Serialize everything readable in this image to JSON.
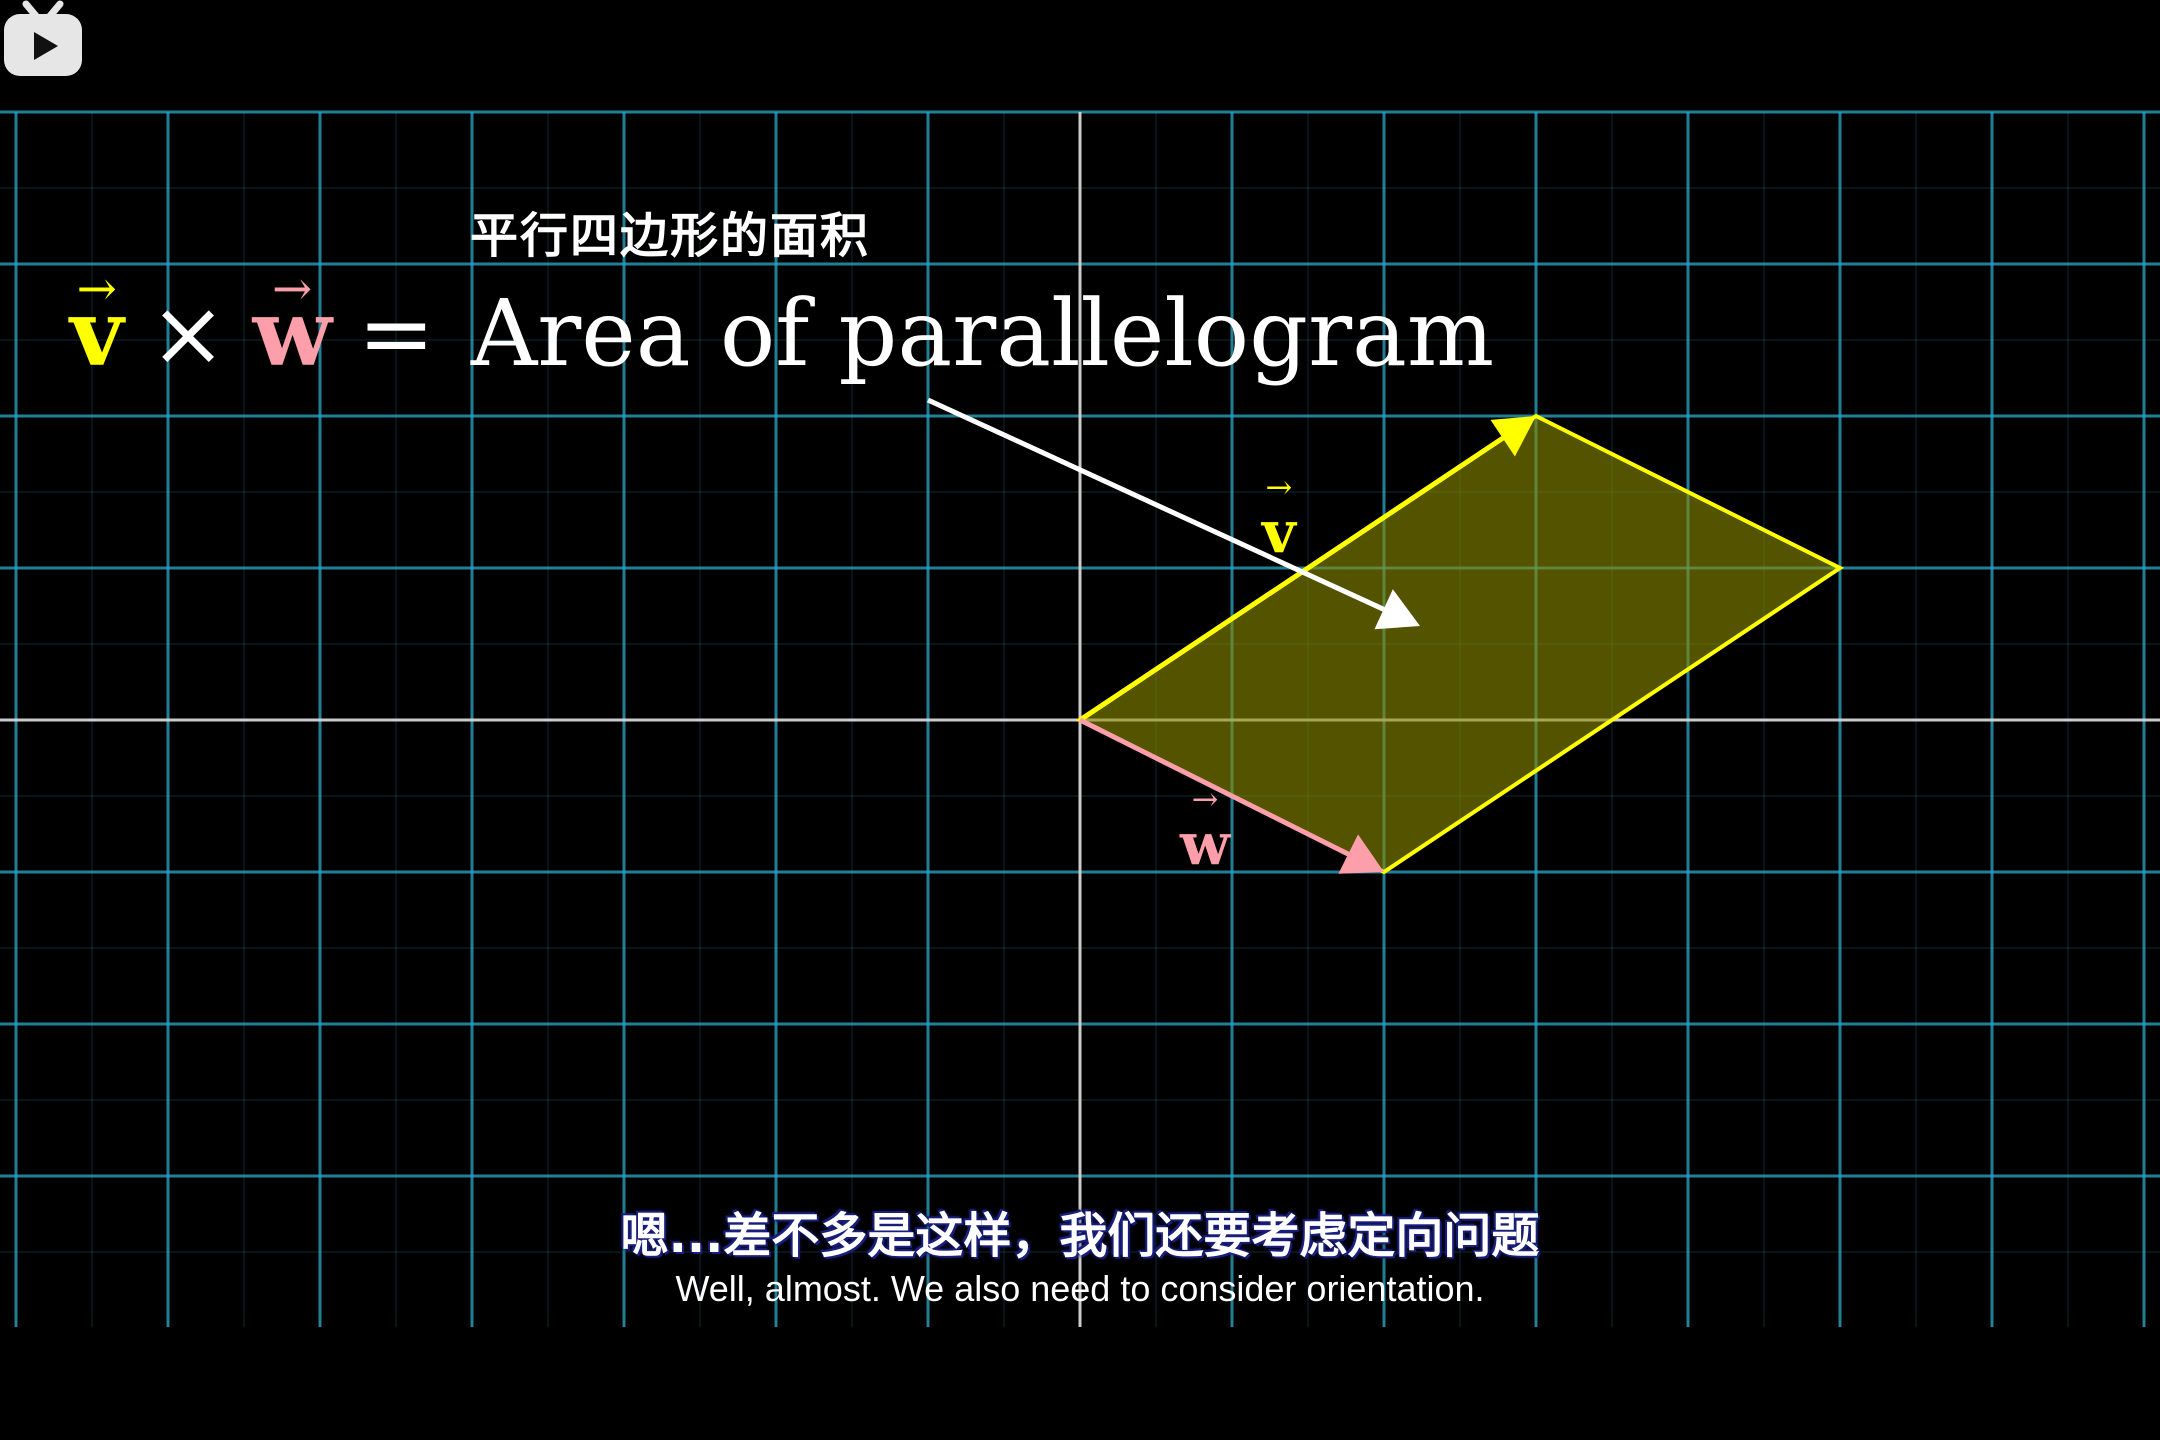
{
  "scene": {
    "title_zh": "平行四边形的面积",
    "formula": {
      "v_symbol": "v",
      "w_symbol": "w",
      "arrow": "→",
      "times": "×",
      "equals": "=",
      "rhs": "Area of parallelogram"
    },
    "labels": {
      "v": "v",
      "w": "w"
    }
  },
  "vectors": {
    "v": {
      "components": [
        3,
        2
      ],
      "color": "#FFFF00"
    },
    "w": {
      "components": [
        2,
        -1
      ],
      "color": "#FC9FAA"
    }
  },
  "parallelogram": {
    "fill": "#8B8B00",
    "stroke": "#FFFF00"
  },
  "subtitles": {
    "zh": "嗯...差不多是这样，我们还要考虑定向问题",
    "en": "Well, almost. We also need to consider orientation."
  },
  "watermark": {
    "icon": "bilibili-tv-icon"
  },
  "colors": {
    "grid": "#29abca",
    "axis": "#cccccc",
    "background": "#000000"
  }
}
